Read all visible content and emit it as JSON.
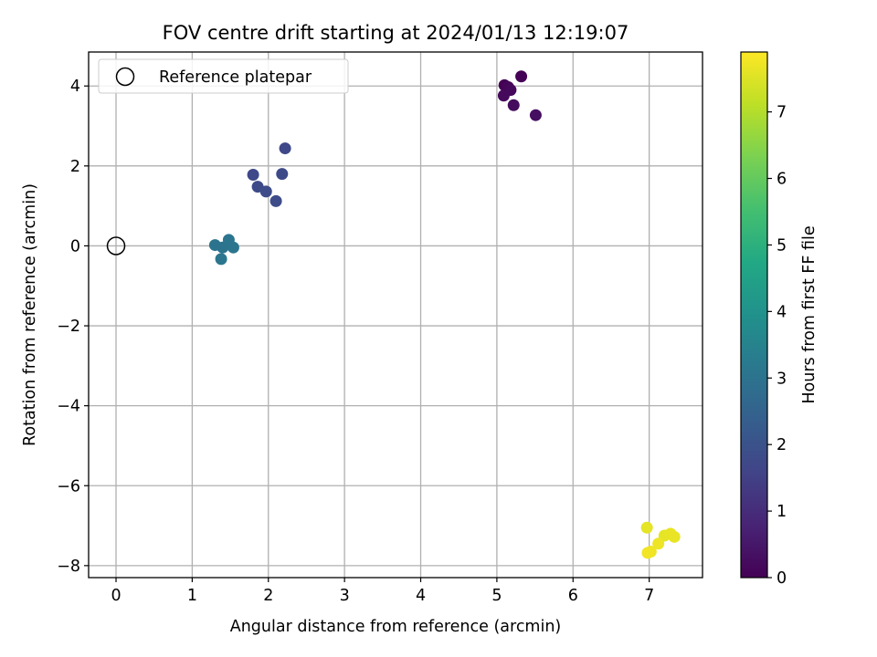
{
  "chart_data": {
    "type": "scatter",
    "title": "FOV centre drift starting at 2024/01/13 12:19:07",
    "xlabel": "Angular distance from reference (arcmin)",
    "ylabel": "Rotation from reference (arcmin)",
    "xlim": [
      -0.36,
      7.7
    ],
    "ylim": [
      -8.3,
      4.85
    ],
    "xticks": [
      0,
      1,
      2,
      3,
      4,
      5,
      6,
      7
    ],
    "xtick_labels": [
      "0",
      "1",
      "2",
      "3",
      "4",
      "5",
      "6",
      "7"
    ],
    "yticks": [
      4,
      2,
      0,
      -2,
      -4,
      -6,
      -8
    ],
    "ytick_labels": [
      "4",
      "2",
      "0",
      "−2",
      "−4",
      "−6",
      "−8"
    ],
    "grid": true,
    "legend": {
      "entries": [
        "Reference platepar"
      ],
      "placement": "top-left"
    },
    "reference_point": {
      "x": 0,
      "y": 0
    },
    "colorbar": {
      "label": "Hours from first FF file",
      "colormap": "viridis",
      "range": [
        0,
        7.9
      ],
      "ticks": [
        0,
        1,
        2,
        3,
        4,
        5,
        6,
        7
      ],
      "tick_labels": [
        "0",
        "1",
        "2",
        "3",
        "4",
        "5",
        "6",
        "7"
      ]
    },
    "points": [
      {
        "x": 5.1,
        "y": 4.02,
        "hours": 0.0
      },
      {
        "x": 5.32,
        "y": 4.24,
        "hours": 0.05
      },
      {
        "x": 5.15,
        "y": 3.97,
        "hours": 0.1
      },
      {
        "x": 5.18,
        "y": 3.9,
        "hours": 0.15
      },
      {
        "x": 5.09,
        "y": 3.76,
        "hours": 0.2
      },
      {
        "x": 5.22,
        "y": 3.52,
        "hours": 0.25
      },
      {
        "x": 5.51,
        "y": 3.27,
        "hours": 0.3
      },
      {
        "x": 1.8,
        "y": 1.78,
        "hours": 1.7
      },
      {
        "x": 2.22,
        "y": 2.44,
        "hours": 1.7
      },
      {
        "x": 2.18,
        "y": 1.8,
        "hours": 1.75
      },
      {
        "x": 1.86,
        "y": 1.48,
        "hours": 1.75
      },
      {
        "x": 1.97,
        "y": 1.36,
        "hours": 1.8
      },
      {
        "x": 2.1,
        "y": 1.12,
        "hours": 1.8
      },
      {
        "x": 1.3,
        "y": 0.02,
        "hours": 3.0
      },
      {
        "x": 1.4,
        "y": -0.04,
        "hours": 3.0
      },
      {
        "x": 1.48,
        "y": 0.15,
        "hours": 3.05
      },
      {
        "x": 1.54,
        "y": -0.04,
        "hours": 3.05
      },
      {
        "x": 1.38,
        "y": -0.33,
        "hours": 3.1
      },
      {
        "x": 6.97,
        "y": -7.05,
        "hours": 7.6
      },
      {
        "x": 7.2,
        "y": -7.25,
        "hours": 7.6
      },
      {
        "x": 7.28,
        "y": -7.2,
        "hours": 7.65
      },
      {
        "x": 7.33,
        "y": -7.28,
        "hours": 7.65
      },
      {
        "x": 7.12,
        "y": -7.45,
        "hours": 7.7
      },
      {
        "x": 7.02,
        "y": -7.65,
        "hours": 7.7
      },
      {
        "x": 6.98,
        "y": -7.68,
        "hours": 7.75
      }
    ]
  }
}
